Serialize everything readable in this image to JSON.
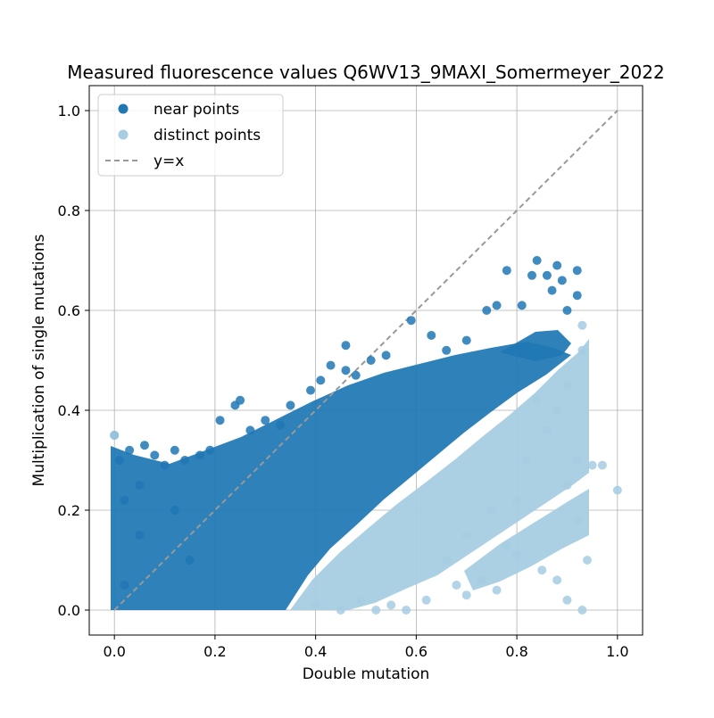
{
  "chart_data": {
    "type": "scatter",
    "title": "Measured fluorescence values Q6WV13_9MAXI_Somermeyer_2022",
    "xlabel": "Double mutation",
    "ylabel": "Multiplication of single mutations",
    "xlim": [
      -0.05,
      1.05
    ],
    "ylim": [
      -0.05,
      1.05
    ],
    "xticks": [
      "0.0",
      "0.2",
      "0.4",
      "0.6",
      "0.8",
      "1.0"
    ],
    "yticks": [
      "0.0",
      "0.2",
      "0.4",
      "0.6",
      "0.8",
      "1.0"
    ],
    "grid": true,
    "legend_position": "top-left",
    "series": [
      {
        "name": "near points",
        "color": "#1f77b4",
        "points": [
          [
            0.0,
            0.35
          ],
          [
            0.01,
            0.3
          ],
          [
            0.02,
            0.22
          ],
          [
            0.03,
            0.32
          ],
          [
            0.05,
            0.25
          ],
          [
            0.06,
            0.33
          ],
          [
            0.08,
            0.31
          ],
          [
            0.1,
            0.29
          ],
          [
            0.12,
            0.32
          ],
          [
            0.14,
            0.3
          ],
          [
            0.17,
            0.31
          ],
          [
            0.19,
            0.32
          ],
          [
            0.21,
            0.38
          ],
          [
            0.24,
            0.41
          ],
          [
            0.25,
            0.42
          ],
          [
            0.27,
            0.36
          ],
          [
            0.3,
            0.38
          ],
          [
            0.33,
            0.37
          ],
          [
            0.35,
            0.41
          ],
          [
            0.39,
            0.44
          ],
          [
            0.41,
            0.46
          ],
          [
            0.46,
            0.48
          ],
          [
            0.48,
            0.47
          ],
          [
            0.51,
            0.5
          ],
          [
            0.54,
            0.51
          ],
          [
            0.59,
            0.58
          ],
          [
            0.63,
            0.55
          ],
          [
            0.66,
            0.52
          ],
          [
            0.7,
            0.54
          ],
          [
            0.74,
            0.6
          ],
          [
            0.76,
            0.61
          ],
          [
            0.78,
            0.68
          ],
          [
            0.81,
            0.61
          ],
          [
            0.83,
            0.67
          ],
          [
            0.84,
            0.7
          ],
          [
            0.86,
            0.67
          ],
          [
            0.88,
            0.69
          ],
          [
            0.89,
            0.66
          ],
          [
            0.92,
            0.68
          ],
          [
            0.92,
            0.63
          ],
          [
            0.87,
            0.64
          ],
          [
            0.9,
            0.6
          ],
          [
            0.46,
            0.53
          ],
          [
            0.43,
            0.49
          ],
          [
            0.12,
            0.2
          ],
          [
            0.15,
            0.1
          ],
          [
            0.02,
            0.05
          ],
          [
            0.05,
            0.15
          ]
        ]
      },
      {
        "name": "distinct points",
        "color": "#a6cde2",
        "points": [
          [
            0.0,
            0.35
          ],
          [
            1.0,
            0.24
          ],
          [
            0.92,
            0.18
          ],
          [
            0.94,
            0.1
          ],
          [
            0.92,
            0.3
          ],
          [
            0.9,
            0.25
          ],
          [
            0.93,
            0.0
          ],
          [
            0.9,
            0.02
          ],
          [
            0.88,
            0.06
          ],
          [
            0.85,
            0.08
          ],
          [
            0.8,
            0.11
          ],
          [
            0.78,
            0.13
          ],
          [
            0.76,
            0.04
          ],
          [
            0.73,
            0.06
          ],
          [
            0.7,
            0.03
          ],
          [
            0.68,
            0.05
          ],
          [
            0.62,
            0.02
          ],
          [
            0.58,
            0.0
          ],
          [
            0.55,
            0.01
          ],
          [
            0.52,
            0.0
          ],
          [
            0.49,
            0.02
          ],
          [
            0.45,
            0.0
          ],
          [
            0.4,
            0.01
          ],
          [
            0.82,
            0.3
          ],
          [
            0.86,
            0.36
          ],
          [
            0.88,
            0.4
          ],
          [
            0.9,
            0.45
          ],
          [
            0.93,
            0.52
          ],
          [
            0.93,
            0.57
          ],
          [
            0.95,
            0.29
          ],
          [
            0.97,
            0.29
          ],
          [
            0.84,
            0.42
          ],
          [
            0.8,
            0.22
          ],
          [
            0.75,
            0.2
          ],
          [
            0.7,
            0.15
          ],
          [
            0.66,
            0.1
          ]
        ]
      }
    ],
    "reference_line": {
      "name": "y=x",
      "color": "#999999",
      "x": [
        0,
        1
      ],
      "y": [
        0,
        1
      ]
    }
  }
}
